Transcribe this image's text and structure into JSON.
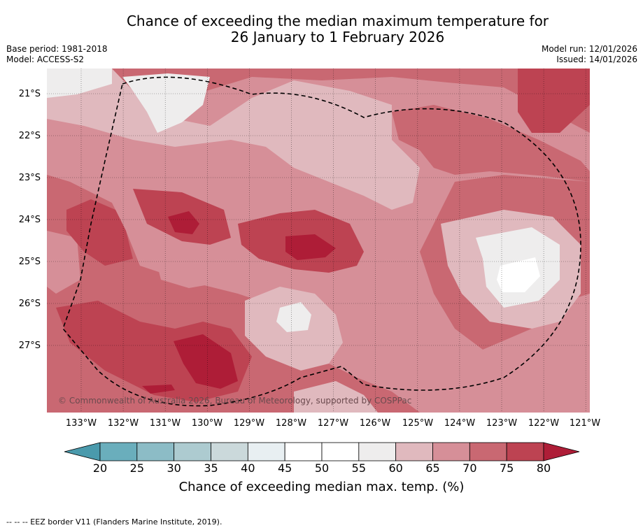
{
  "title": {
    "line1": "Chance of exceeding the median maximum temperature for",
    "line2": "26 January to 1 February 2026"
  },
  "meta": {
    "base_period": "Base period: 1981-2018",
    "model": "Model: ACCESS-S2",
    "model_run": "Model run: 12/01/2026",
    "issued": "Issued: 14/01/2026"
  },
  "map": {
    "latitude_labels": [
      "21°S",
      "22°S",
      "23°S",
      "24°S",
      "25°S",
      "26°S",
      "27°S"
    ],
    "longitude_labels": [
      "133°W",
      "132°W",
      "131°W",
      "130°W",
      "129°W",
      "128°W",
      "127°W",
      "126°W",
      "125°W",
      "124°W",
      "123°W",
      "122°W",
      "121°W"
    ],
    "copyright": "© Commonwealth of Australia 2026, Bureau of Meteorology, supported by COSPPac"
  },
  "colorbar": {
    "ticks": [
      "20",
      "25",
      "30",
      "35",
      "40",
      "45",
      "50",
      "55",
      "60",
      "65",
      "70",
      "75",
      "80"
    ],
    "colors": [
      "#4a9aac",
      "#6aaebc",
      "#8cbcc6",
      "#adcbd0",
      "#cbd9db",
      "#e8eff2",
      "#ffffff",
      "#ffffff",
      "#eeeded",
      "#e0b9be",
      "#d68f98",
      "#c96872",
      "#bd4352",
      "#ae1d37"
    ],
    "label": "Chance of exceeding median max. temp. (%)"
  },
  "footer": {
    "eez_note": "--  --  -- EEZ border V11 (Flanders Marine Institute, 2019)."
  }
}
